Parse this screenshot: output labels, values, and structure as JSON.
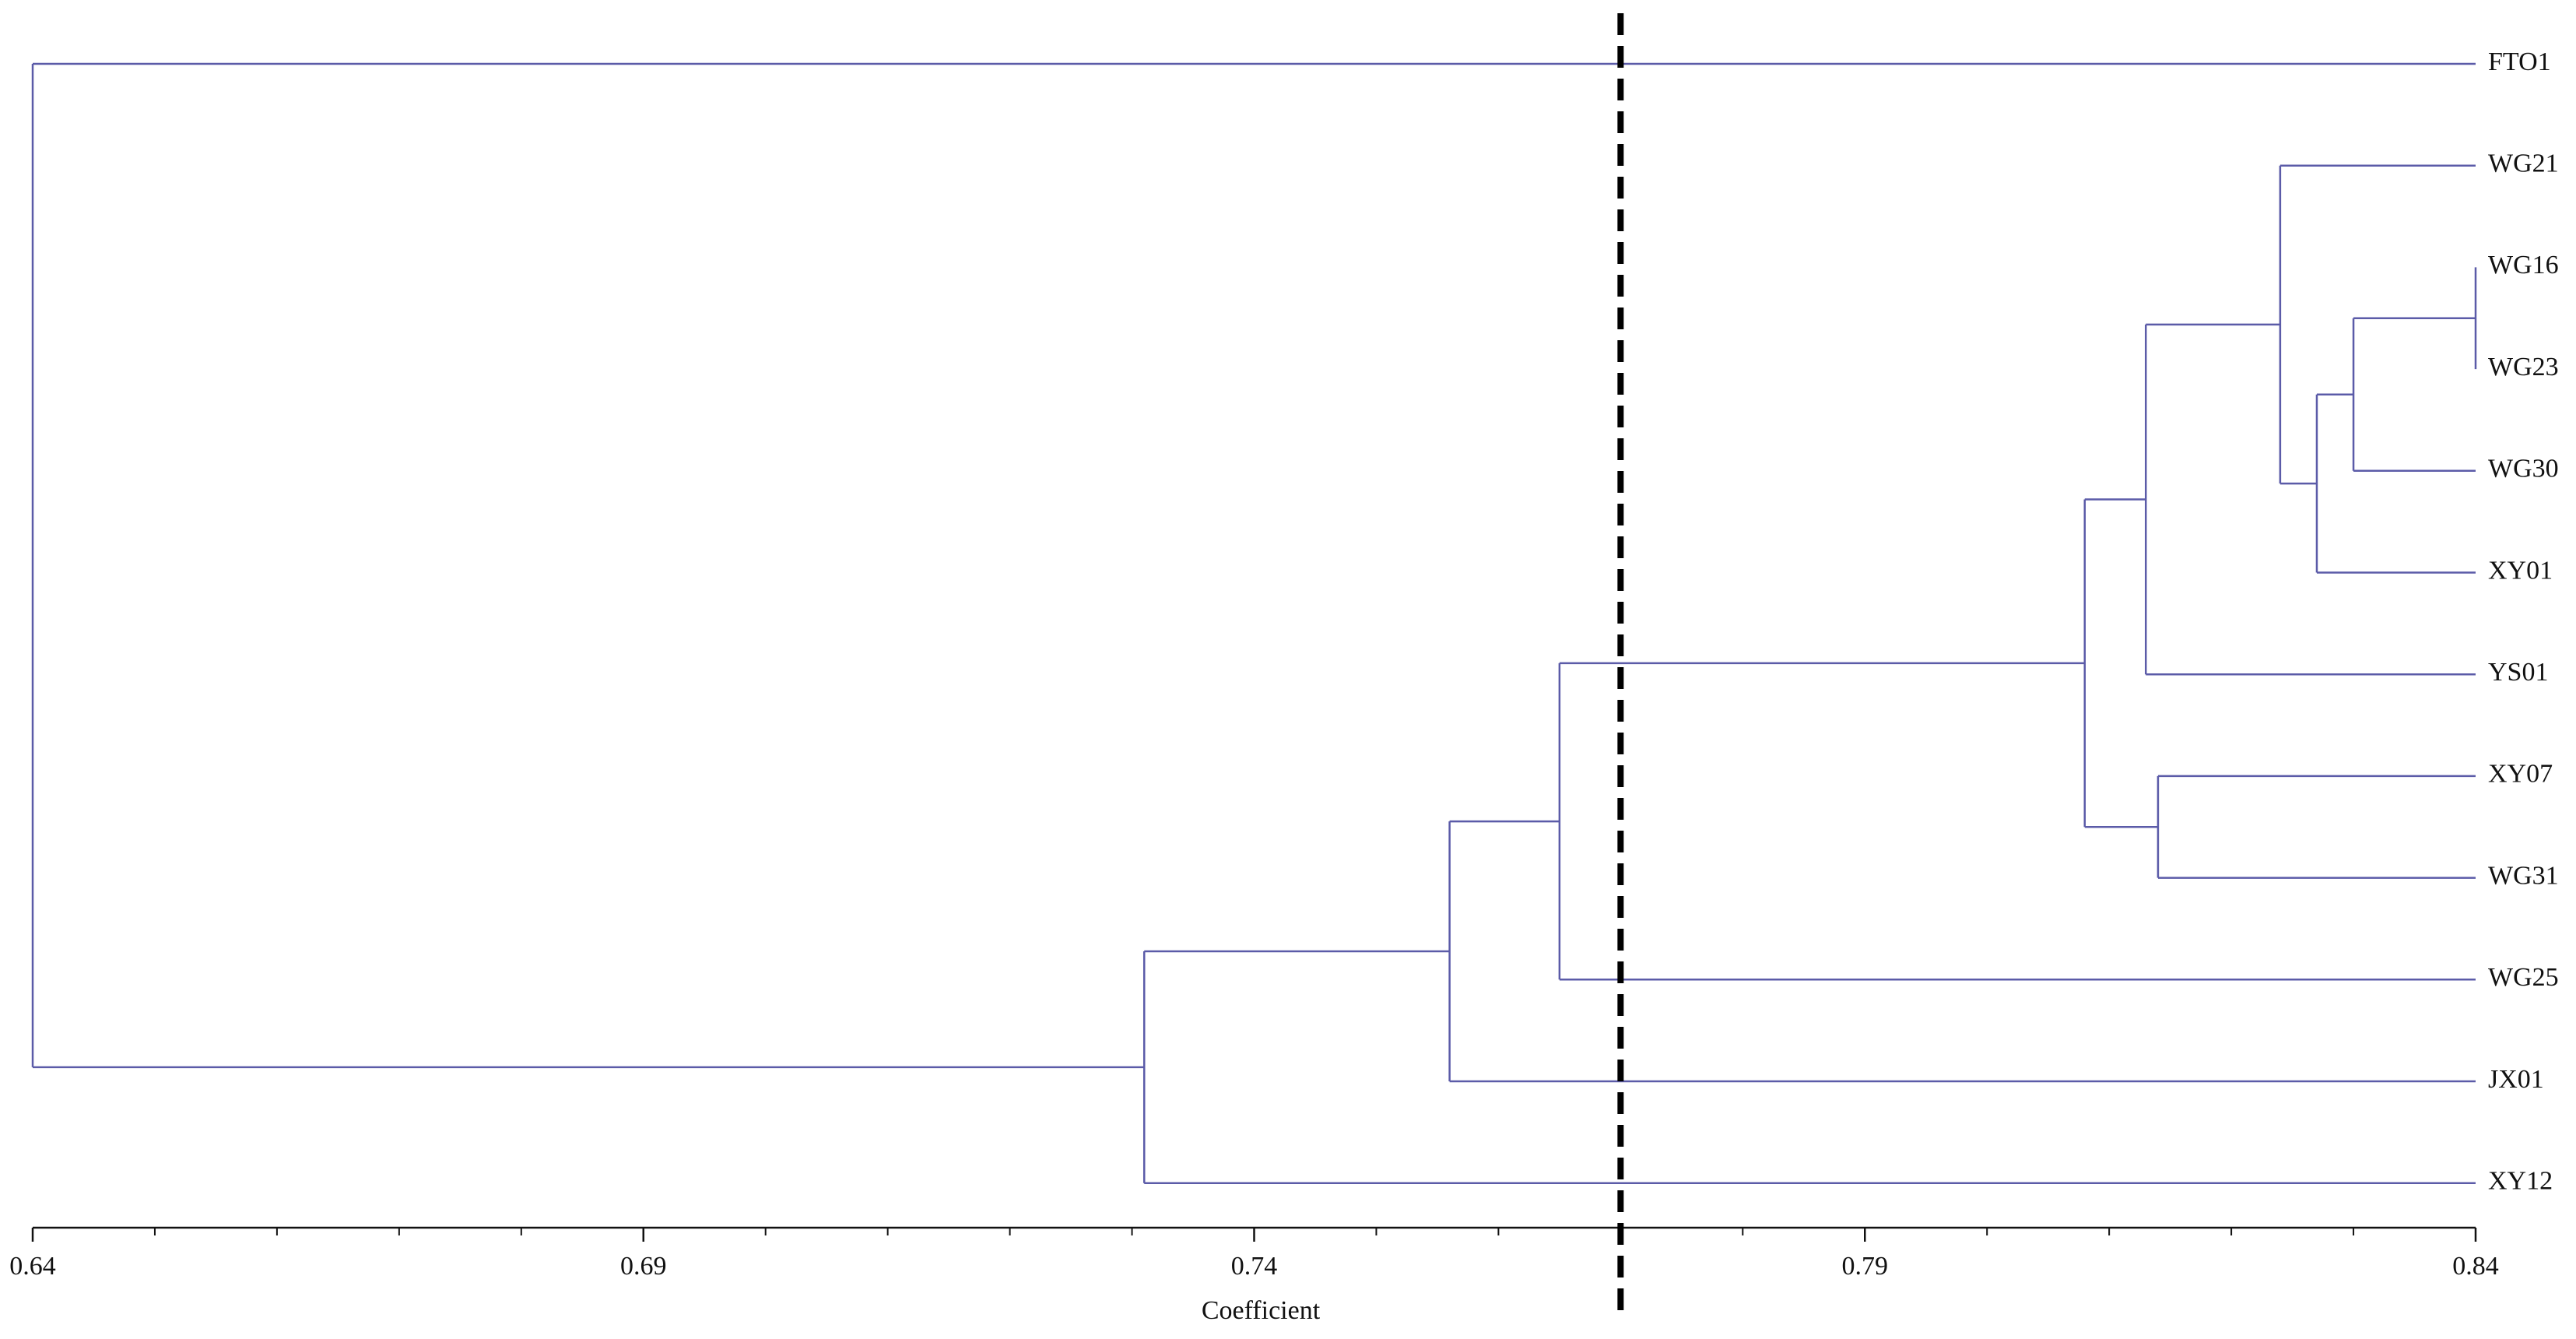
{
  "chart_data": {
    "type": "dendrogram",
    "x_label": "Coefficient",
    "orientation": "left",
    "color": "#5b5ba8",
    "cutoff": 0.77,
    "xlim": [
      0.64,
      0.84
    ],
    "xticks": [
      0.64,
      0.69,
      0.74,
      0.79,
      0.84
    ],
    "xticks_minor": [
      0.65,
      0.66,
      0.67,
      0.68,
      0.7,
      0.71,
      0.72,
      0.73,
      0.75,
      0.76,
      0.77,
      0.78,
      0.8,
      0.81,
      0.82,
      0.83
    ],
    "tree": {
      "height": 0.64,
      "children": [
        {
          "label": "FTO1"
        },
        {
          "height": 0.731,
          "children": [
            {
              "height": 0.756,
              "children": [
                {
                  "height": 0.765,
                  "children": [
                    {
                      "height": 0.808,
                      "children": [
                        {
                          "height": 0.813,
                          "children": [
                            {
                              "height": 0.824,
                              "children": [
                                {
                                  "label": "WG21"
                                },
                                {
                                  "height": 0.827,
                                  "children": [
                                    {
                                      "height": 0.83,
                                      "children": [
                                        {
                                          "height": 0.84,
                                          "children": [
                                            {
                                              "label": "WG16"
                                            },
                                            {
                                              "label": "WG23"
                                            }
                                          ]
                                        },
                                        {
                                          "label": "WG30"
                                        }
                                      ]
                                    },
                                    {
                                      "label": "XY01"
                                    }
                                  ]
                                }
                              ]
                            },
                            {
                              "label": "YS01"
                            }
                          ]
                        },
                        {
                          "height": 0.814,
                          "children": [
                            {
                              "label": "XY07"
                            },
                            {
                              "label": "WG31"
                            }
                          ]
                        }
                      ]
                    },
                    {
                      "label": "WG25"
                    }
                  ]
                },
                {
                  "label": "JX01"
                }
              ]
            },
            {
              "label": "XY12"
            }
          ]
        }
      ]
    }
  }
}
